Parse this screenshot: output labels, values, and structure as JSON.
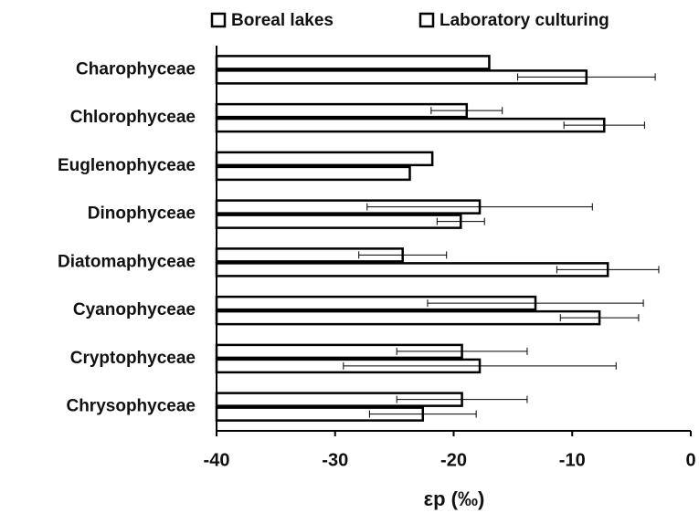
{
  "chart_data": {
    "type": "bar",
    "orientation": "horizontal",
    "x_label": "εp (‰)",
    "categories": [
      "Charophyceae",
      "Chlorophyceae",
      "Euglenophyceae",
      "Dinophyceae",
      "Diatomaphyceae",
      "Cyanophyceae",
      "Cryptophyceae",
      "Chrysophyceae"
    ],
    "series": [
      {
        "name": "Boreal lakes",
        "color": "#ffffff",
        "values": [
          -17.0,
          -18.9,
          -21.8,
          -17.8,
          -24.3,
          -13.1,
          -19.3,
          -19.3
        ],
        "errors": [
          null,
          3.0,
          null,
          9.5,
          3.7,
          9.1,
          5.5,
          5.5
        ]
      },
      {
        "name": "Laboratory culturing",
        "color": "#ffffff",
        "values": [
          -8.8,
          -7.3,
          -23.7,
          -19.4,
          -7.0,
          -7.7,
          -17.8,
          -22.6
        ],
        "errors": [
          5.8,
          3.4,
          null,
          2.0,
          4.3,
          3.3,
          11.5,
          4.5
        ]
      }
    ],
    "xlim": [
      -40,
      0
    ],
    "xticks": [
      -40,
      -30,
      -20,
      -10,
      0
    ],
    "legend": "top",
    "grid": false
  }
}
